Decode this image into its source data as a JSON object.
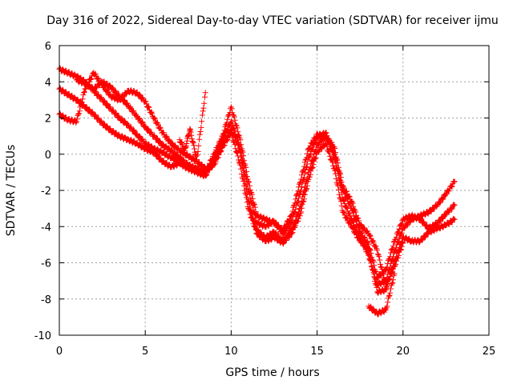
{
  "chart_data": {
    "type": "scatter",
    "title": "Day 316 of 2022, Sidereal Day-to-day VTEC variation (SDTVAR) for receiver ijmu",
    "xlabel": "GPS time / hours",
    "ylabel": "SDTVAR / TECUs",
    "xlim": [
      0,
      25
    ],
    "ylim": [
      -10,
      6
    ],
    "xticks": [
      0,
      5,
      10,
      15,
      20,
      25
    ],
    "yticks": [
      -10,
      -8,
      -6,
      -4,
      -2,
      0,
      2,
      4,
      6
    ],
    "grid": true,
    "marker": "+",
    "color": "#ff0000",
    "series": [
      {
        "name": "track-1",
        "x": [
          0.0,
          0.5,
          1.0,
          1.5,
          2.0,
          2.5,
          3.0,
          3.5,
          4.0,
          4.5,
          5.0,
          5.5,
          6.0,
          6.5,
          7.0,
          7.5,
          8.0,
          8.5,
          9.0,
          9.5,
          10.0,
          10.5,
          11.0,
          11.5,
          12.0,
          12.5,
          13.0,
          13.5,
          14.0,
          14.5,
          15.0,
          15.5,
          16.0,
          16.5,
          17.0,
          17.5,
          18.0,
          18.5,
          19.0,
          19.5,
          20.0,
          20.5,
          21.0,
          21.5,
          22.0,
          22.5,
          23.0
        ],
        "y": [
          4.7,
          4.5,
          4.3,
          4.0,
          3.5,
          3.0,
          2.5,
          2.0,
          1.6,
          1.1,
          0.6,
          0.3,
          0.1,
          -0.2,
          -0.4,
          -0.6,
          -0.9,
          -1.1,
          -0.4,
          0.6,
          1.4,
          0.2,
          -2.6,
          -4.2,
          -4.6,
          -4.3,
          -4.8,
          -4.2,
          -3.0,
          -1.0,
          0.5,
          1.0,
          0.1,
          -2.5,
          -3.6,
          -4.6,
          -5.6,
          -7.2,
          -7.0,
          -5.4,
          -4.1,
          -3.6,
          -3.4,
          -3.2,
          -2.8,
          -2.2,
          -1.5
        ]
      },
      {
        "name": "track-2",
        "x": [
          0.0,
          0.5,
          1.0,
          1.5,
          2.0,
          2.5,
          3.0,
          3.5,
          4.0,
          4.5,
          5.0,
          5.5,
          6.0,
          6.5,
          7.0,
          7.5,
          8.0,
          8.5,
          9.0,
          9.5,
          10.0,
          10.5,
          11.0,
          11.5,
          12.0,
          12.5,
          13.0,
          13.5,
          14.0,
          14.5,
          15.0,
          15.5,
          16.0,
          16.5,
          17.0,
          17.5,
          18.0,
          18.5,
          19.0,
          19.5,
          20.0,
          20.5,
          21.0,
          21.5,
          22.0,
          22.5,
          23.0
        ],
        "y": [
          3.6,
          3.3,
          3.0,
          2.6,
          2.2,
          1.7,
          1.3,
          1.0,
          0.8,
          0.6,
          0.3,
          0.1,
          -0.4,
          -0.7,
          -0.5,
          -0.8,
          -1.0,
          -1.2,
          -0.3,
          0.9,
          1.8,
          0.5,
          -2.0,
          -3.8,
          -4.0,
          -3.7,
          -4.4,
          -3.8,
          -2.2,
          -0.2,
          0.9,
          1.2,
          -0.2,
          -2.0,
          -3.0,
          -4.3,
          -5.0,
          -6.8,
          -6.4,
          -4.8,
          -3.6,
          -3.4,
          -3.6,
          -4.1,
          -3.8,
          -3.3,
          -2.8
        ]
      },
      {
        "name": "track-3",
        "x": [
          0.0,
          0.5,
          1.0,
          1.5,
          2.0,
          2.5,
          3.0,
          3.5,
          4.0,
          4.5,
          5.0,
          5.5,
          6.0,
          6.5,
          7.0,
          7.5,
          8.0,
          8.5,
          9.0,
          9.5,
          10.0,
          10.5,
          11.0,
          11.5,
          12.0,
          12.5,
          13.0,
          13.5,
          14.0,
          14.5,
          15.0,
          15.5,
          16.0,
          16.5,
          17.0,
          17.5,
          18.0,
          18.5,
          19.0,
          19.5,
          20.0,
          20.5,
          21.0,
          21.5,
          22.0,
          22.5,
          23.0
        ],
        "y": [
          2.2,
          1.9,
          1.8,
          3.6,
          4.5,
          3.8,
          3.2,
          3.0,
          3.5,
          3.4,
          2.9,
          2.0,
          1.2,
          0.6,
          0.2,
          -0.1,
          -0.4,
          -0.8,
          -0.6,
          0.4,
          1.2,
          -0.5,
          -3.0,
          -4.4,
          -4.8,
          -4.6,
          -4.9,
          -4.4,
          -3.4,
          -1.4,
          0.1,
          0.6,
          -0.8,
          -3.2,
          -4.0,
          -4.8,
          -5.3,
          -7.6,
          -7.5,
          -5.9,
          -4.6,
          -4.8,
          -4.8,
          -4.3,
          -4.1,
          -3.9,
          -3.6
        ]
      },
      {
        "name": "track-4",
        "x": [
          1.0,
          1.5,
          2.0,
          2.5,
          3.0,
          3.5,
          4.0,
          4.5,
          5.0,
          5.5,
          6.0,
          6.5,
          7.0,
          7.5,
          8.0,
          8.5,
          9.0,
          9.5,
          10.0,
          10.5,
          11.0,
          11.5,
          12.0,
          12.5,
          13.0,
          13.5,
          14.0,
          14.5,
          15.0,
          15.5,
          16.0,
          16.5,
          17.0,
          17.5,
          18.0,
          18.5,
          19.0,
          19.5,
          20.0
        ],
        "y": [
          4.1,
          3.9,
          3.6,
          4.0,
          3.7,
          3.2,
          2.7,
          2.1,
          1.5,
          1.0,
          0.5,
          0.2,
          -0.2,
          -0.6,
          -0.8,
          -1.0,
          0.0,
          1.0,
          2.6,
          0.9,
          -1.5,
          -3.4,
          -3.6,
          -3.8,
          -4.2,
          -3.4,
          -1.6,
          0.3,
          1.1,
          1.0,
          0.4,
          -1.8,
          -2.6,
          -3.9,
          -4.4,
          -5.3,
          -7.3,
          -6.2,
          -4.9
        ]
      },
      {
        "name": "track-5",
        "x": [
          7.0,
          7.3,
          7.6,
          8.0,
          8.5,
          18.0,
          18.5,
          19.0,
          19.5
        ],
        "y": [
          0.8,
          0.2,
          1.4,
          -0.3,
          3.4,
          -8.4,
          -8.8,
          -8.6,
          -6.6
        ]
      }
    ]
  }
}
